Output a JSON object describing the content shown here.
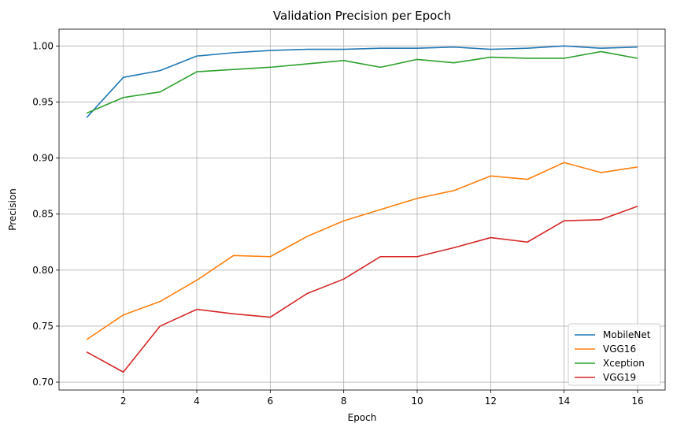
{
  "chart_data": {
    "type": "line",
    "title": "Validation Precision per Epoch",
    "xlabel": "Epoch",
    "ylabel": "Precision",
    "x": [
      1,
      2,
      3,
      4,
      5,
      6,
      7,
      8,
      9,
      10,
      11,
      12,
      13,
      14,
      15,
      16
    ],
    "xlim": [
      0.25,
      16.75
    ],
    "ylim": [
      0.693,
      1.015
    ],
    "xticks": [
      2,
      4,
      6,
      8,
      10,
      12,
      14,
      16
    ],
    "yticks": [
      0.7,
      0.75,
      0.8,
      0.85,
      0.9,
      0.95,
      1.0
    ],
    "xtick_labels": [
      "2",
      "4",
      "6",
      "8",
      "10",
      "12",
      "14",
      "16"
    ],
    "ytick_labels": [
      "0.70",
      "0.75",
      "0.80",
      "0.85",
      "0.90",
      "0.95",
      "1.00"
    ],
    "grid": true,
    "legend_position": "bottom-right",
    "series": [
      {
        "name": "MobileNet",
        "color": "#1f77b4",
        "values": [
          0.936,
          0.972,
          0.978,
          0.991,
          0.994,
          0.996,
          0.997,
          0.997,
          0.998,
          0.998,
          0.999,
          0.997,
          0.998,
          1.0,
          0.998,
          0.999
        ]
      },
      {
        "name": "VGG16",
        "color": "#ff7f0e",
        "values": [
          0.738,
          0.76,
          0.772,
          0.791,
          0.813,
          0.812,
          0.83,
          0.844,
          0.854,
          0.864,
          0.871,
          0.884,
          0.881,
          0.896,
          0.887,
          0.892
        ]
      },
      {
        "name": "Xception",
        "color": "#2ca02c",
        "values": [
          0.94,
          0.954,
          0.959,
          0.977,
          0.979,
          0.981,
          0.984,
          0.987,
          0.981,
          0.988,
          0.985,
          0.99,
          0.989,
          0.989,
          0.995,
          0.989
        ]
      },
      {
        "name": "VGG19",
        "color": "#d62728",
        "values": [
          0.727,
          0.709,
          0.75,
          0.765,
          0.761,
          0.758,
          0.779,
          0.792,
          0.812,
          0.812,
          0.82,
          0.829,
          0.825,
          0.844,
          0.845,
          0.857
        ]
      }
    ]
  }
}
